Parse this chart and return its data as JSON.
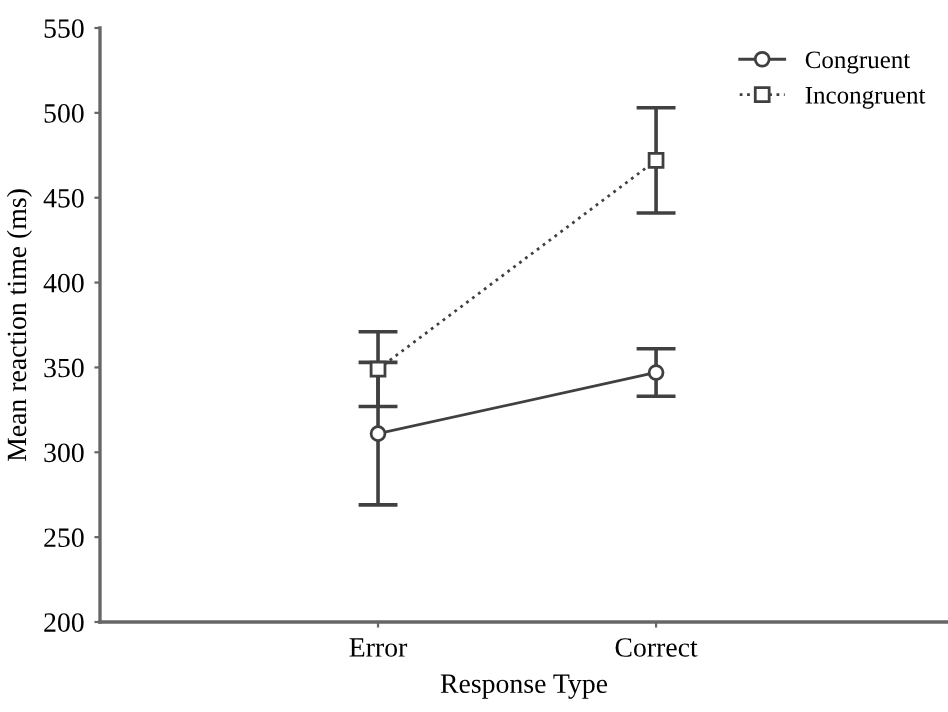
{
  "chart_data": {
    "type": "line",
    "xlabel": "Response Type",
    "ylabel": "Mean reaction time (ms)",
    "categories": [
      "Error",
      "Correct"
    ],
    "series": [
      {
        "name": "Congruent",
        "color": "#404040",
        "values": [
          311,
          347
        ],
        "errors": [
          42,
          14
        ],
        "marker": "circle",
        "line_style": "solid"
      },
      {
        "name": "Incongruent",
        "color": "#404040",
        "values": [
          349,
          472
        ],
        "errors": [
          22,
          31
        ],
        "marker": "square",
        "line_style": "dotted"
      }
    ],
    "ylim": [
      200,
      550
    ],
    "yticks": [
      200,
      250,
      300,
      350,
      400,
      450,
      500,
      550
    ],
    "grid": false,
    "legend": "top right"
  }
}
